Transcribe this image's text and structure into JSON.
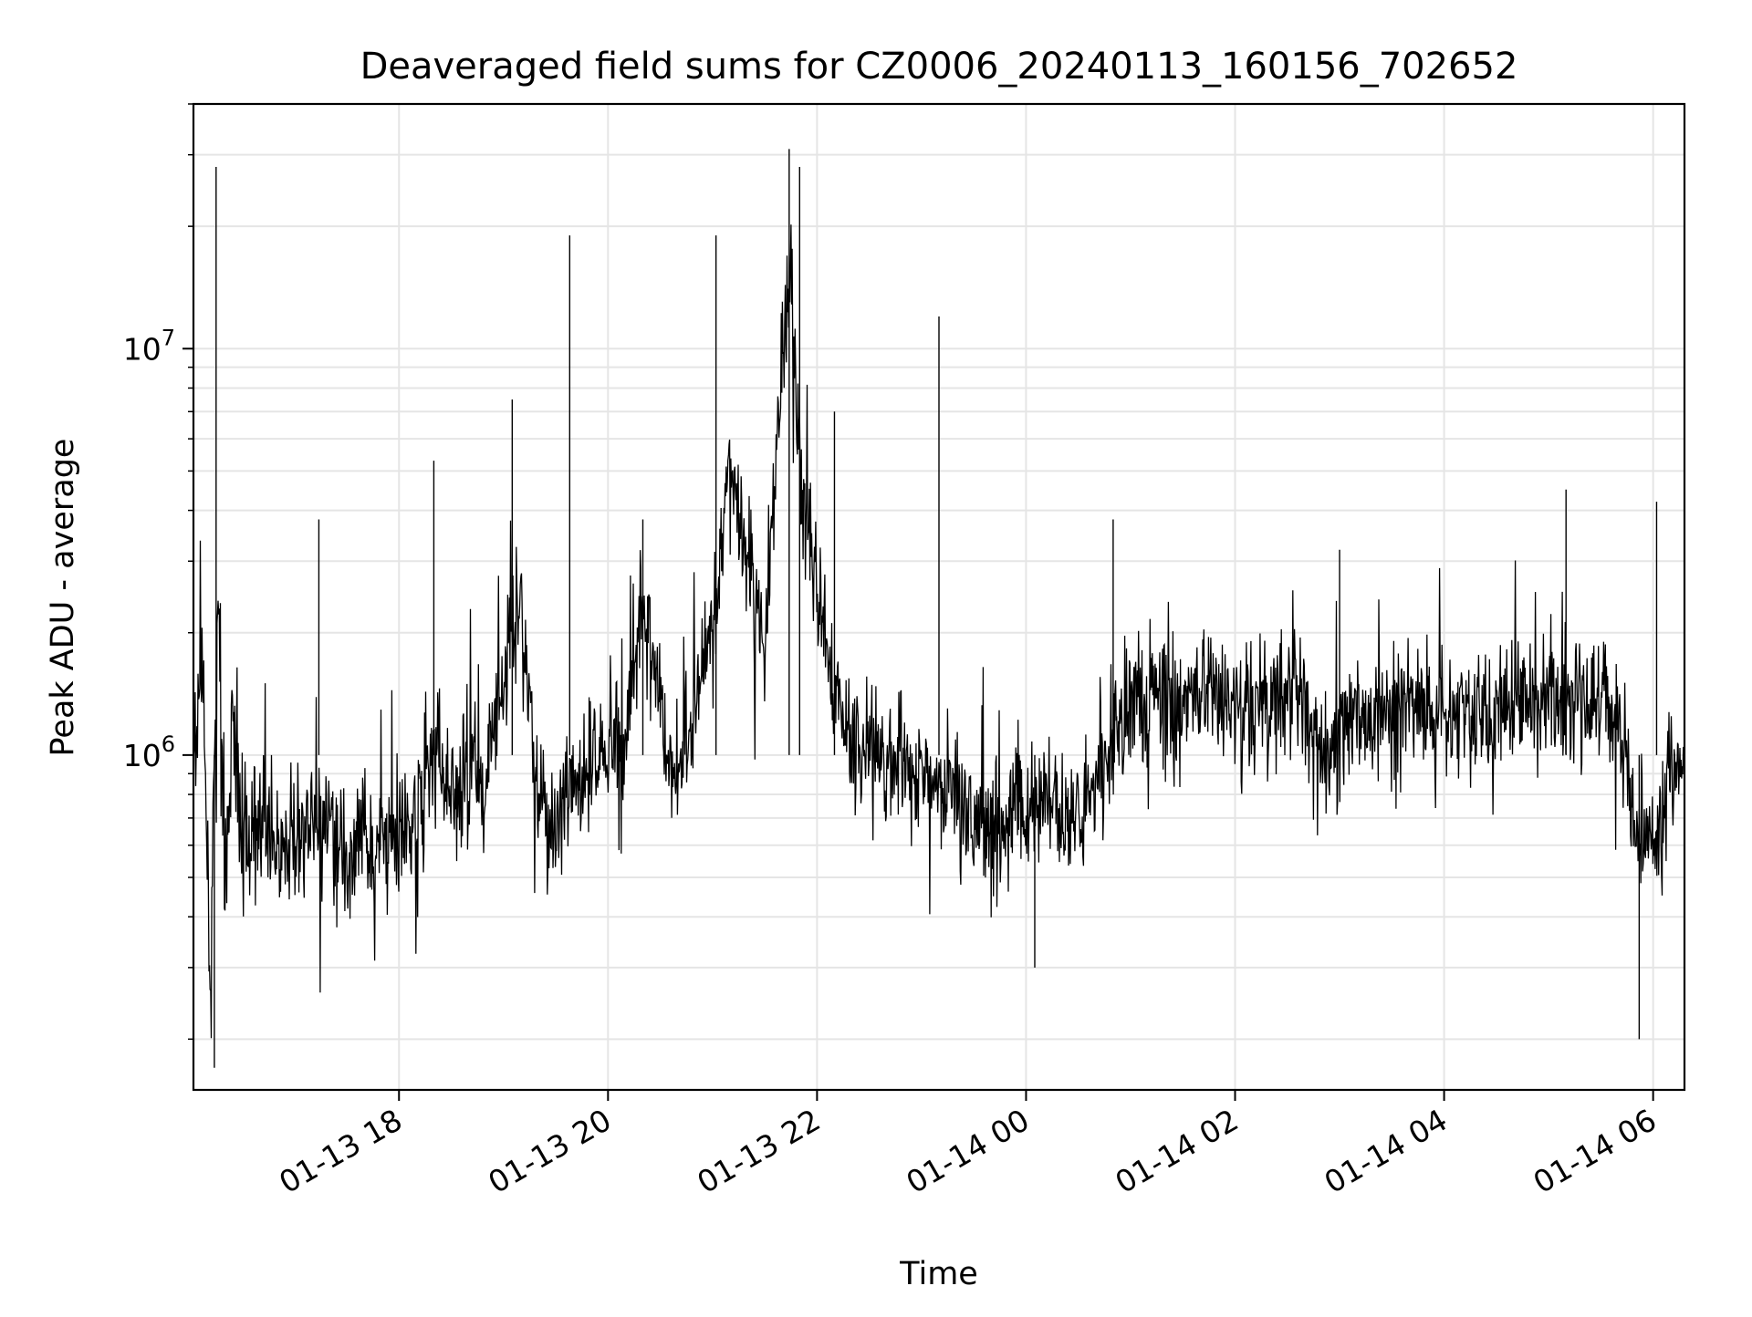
{
  "chart_data": {
    "type": "line",
    "title": "Deaveraged field sums for CZ0006_20240113_160156_702652",
    "xlabel": "Time",
    "ylabel": "Peak ADU - average",
    "x_range": [
      "2024-01-13T16:02",
      "2024-01-14T06:18"
    ],
    "ylim": [
      150000,
      40000000
    ],
    "y_scale": "log",
    "grid": true,
    "line_color": "#000000",
    "grid_color": "#e5e5e5",
    "x_ticks": [
      {
        "value": "2024-01-13T18:00",
        "label": "01-13 18"
      },
      {
        "value": "2024-01-13T20:00",
        "label": "01-13 20"
      },
      {
        "value": "2024-01-13T22:00",
        "label": "01-13 22"
      },
      {
        "value": "2024-01-14T00:00",
        "label": "01-14 00"
      },
      {
        "value": "2024-01-14T02:00",
        "label": "01-14 02"
      },
      {
        "value": "2024-01-14T04:00",
        "label": "01-14 04"
      },
      {
        "value": "2024-01-14T06:00",
        "label": "01-14 06"
      }
    ],
    "y_ticks": [
      {
        "value": 1000000,
        "base": "10",
        "exp": "6"
      },
      {
        "value": 10000000,
        "base": "10",
        "exp": "7"
      }
    ],
    "series": [
      {
        "points": [
          [
            "2024-01-13T16:02",
            800000
          ],
          [
            "2024-01-13T16:07",
            1800000
          ],
          [
            "2024-01-13T16:12",
            250000
          ],
          [
            "2024-01-13T16:16",
            2500000
          ],
          [
            "2024-01-13T16:20",
            400000
          ],
          [
            "2024-01-13T16:24",
            1200000
          ],
          [
            "2024-01-13T16:30",
            600000
          ],
          [
            "2024-01-13T16:40",
            700000
          ],
          [
            "2024-01-13T16:50",
            550000
          ],
          [
            "2024-01-13T17:00",
            650000
          ],
          [
            "2024-01-13T17:10",
            600000
          ],
          [
            "2024-01-13T17:20",
            700000
          ],
          [
            "2024-01-13T17:30",
            550000
          ],
          [
            "2024-01-13T17:40",
            600000
          ],
          [
            "2024-01-13T17:50",
            620000
          ],
          [
            "2024-01-13T18:00",
            650000
          ],
          [
            "2024-01-13T18:10",
            700000
          ],
          [
            "2024-01-13T18:20",
            1000000
          ],
          [
            "2024-01-13T18:30",
            800000
          ],
          [
            "2024-01-13T18:40",
            850000
          ],
          [
            "2024-01-13T18:50",
            900000
          ],
          [
            "2024-01-13T19:00",
            1500000
          ],
          [
            "2024-01-13T19:10",
            2500000
          ],
          [
            "2024-01-13T19:20",
            800000
          ],
          [
            "2024-01-13T19:30",
            650000
          ],
          [
            "2024-01-13T19:40",
            800000
          ],
          [
            "2024-01-13T19:50",
            1000000
          ],
          [
            "2024-01-13T20:00",
            1000000
          ],
          [
            "2024-01-13T20:10",
            1100000
          ],
          [
            "2024-01-13T20:20",
            2500000
          ],
          [
            "2024-01-13T20:30",
            1200000
          ],
          [
            "2024-01-13T20:40",
            900000
          ],
          [
            "2024-01-13T20:50",
            1300000
          ],
          [
            "2024-01-13T21:00",
            2000000
          ],
          [
            "2024-01-13T21:10",
            5000000
          ],
          [
            "2024-01-13T21:20",
            3000000
          ],
          [
            "2024-01-13T21:30",
            2000000
          ],
          [
            "2024-01-13T21:40",
            10000000
          ],
          [
            "2024-01-13T21:45",
            15000000
          ],
          [
            "2024-01-13T21:50",
            5000000
          ],
          [
            "2024-01-13T22:00",
            2500000
          ],
          [
            "2024-01-13T22:10",
            1400000
          ],
          [
            "2024-01-13T22:20",
            1100000
          ],
          [
            "2024-01-13T22:30",
            1000000
          ],
          [
            "2024-01-13T22:40",
            900000
          ],
          [
            "2024-01-13T22:50",
            950000
          ],
          [
            "2024-01-13T23:00",
            900000
          ],
          [
            "2024-01-13T23:10",
            850000
          ],
          [
            "2024-01-13T23:20",
            800000
          ],
          [
            "2024-01-13T23:30",
            750000
          ],
          [
            "2024-01-13T23:40",
            700000
          ],
          [
            "2024-01-13T23:50",
            750000
          ],
          [
            "2024-01-14T00:00",
            700000
          ],
          [
            "2024-01-14T00:10",
            750000
          ],
          [
            "2024-01-14T00:20",
            700000
          ],
          [
            "2024-01-14T00:30",
            750000
          ],
          [
            "2024-01-14T00:40",
            800000
          ],
          [
            "2024-01-14T00:50",
            1100000
          ],
          [
            "2024-01-14T01:00",
            1300000
          ],
          [
            "2024-01-14T01:20",
            1400000
          ],
          [
            "2024-01-14T01:40",
            1400000
          ],
          [
            "2024-01-14T02:00",
            1300000
          ],
          [
            "2024-01-14T02:20",
            1350000
          ],
          [
            "2024-01-14T02:40",
            1400000
          ],
          [
            "2024-01-14T02:50",
            900000
          ],
          [
            "2024-01-14T03:00",
            1200000
          ],
          [
            "2024-01-14T03:20",
            1300000
          ],
          [
            "2024-01-14T03:40",
            1350000
          ],
          [
            "2024-01-14T04:00",
            1300000
          ],
          [
            "2024-01-14T04:20",
            1250000
          ],
          [
            "2024-01-14T04:40",
            1300000
          ],
          [
            "2024-01-14T05:00",
            1350000
          ],
          [
            "2024-01-14T05:20",
            1400000
          ],
          [
            "2024-01-14T05:40",
            1300000
          ],
          [
            "2024-01-14T05:50",
            700000
          ],
          [
            "2024-01-14T06:00",
            600000
          ],
          [
            "2024-01-14T06:10",
            900000
          ],
          [
            "2024-01-14T06:18",
            1000000
          ]
        ]
      }
    ],
    "peaks": [
      [
        "2024-01-13T16:15",
        28000000
      ],
      [
        "2024-01-13T16:14",
        170000
      ],
      [
        "2024-01-13T17:14",
        3800000
      ],
      [
        "2024-01-13T18:20",
        5300000
      ],
      [
        "2024-01-13T19:05",
        7500000
      ],
      [
        "2024-01-13T19:38",
        19000000
      ],
      [
        "2024-01-13T20:20",
        3800000
      ],
      [
        "2024-01-13T21:02",
        19000000
      ],
      [
        "2024-01-13T21:44",
        31000000
      ],
      [
        "2024-01-13T21:50",
        28000000
      ],
      [
        "2024-01-13T22:10",
        7000000
      ],
      [
        "2024-01-13T23:10",
        12000000
      ],
      [
        "2024-01-14T00:05",
        300000
      ],
      [
        "2024-01-14T00:50",
        3800000
      ],
      [
        "2024-01-14T03:00",
        3200000
      ],
      [
        "2024-01-14T05:10",
        4500000
      ],
      [
        "2024-01-14T05:52",
        200000
      ],
      [
        "2024-01-14T06:02",
        4200000
      ]
    ]
  }
}
